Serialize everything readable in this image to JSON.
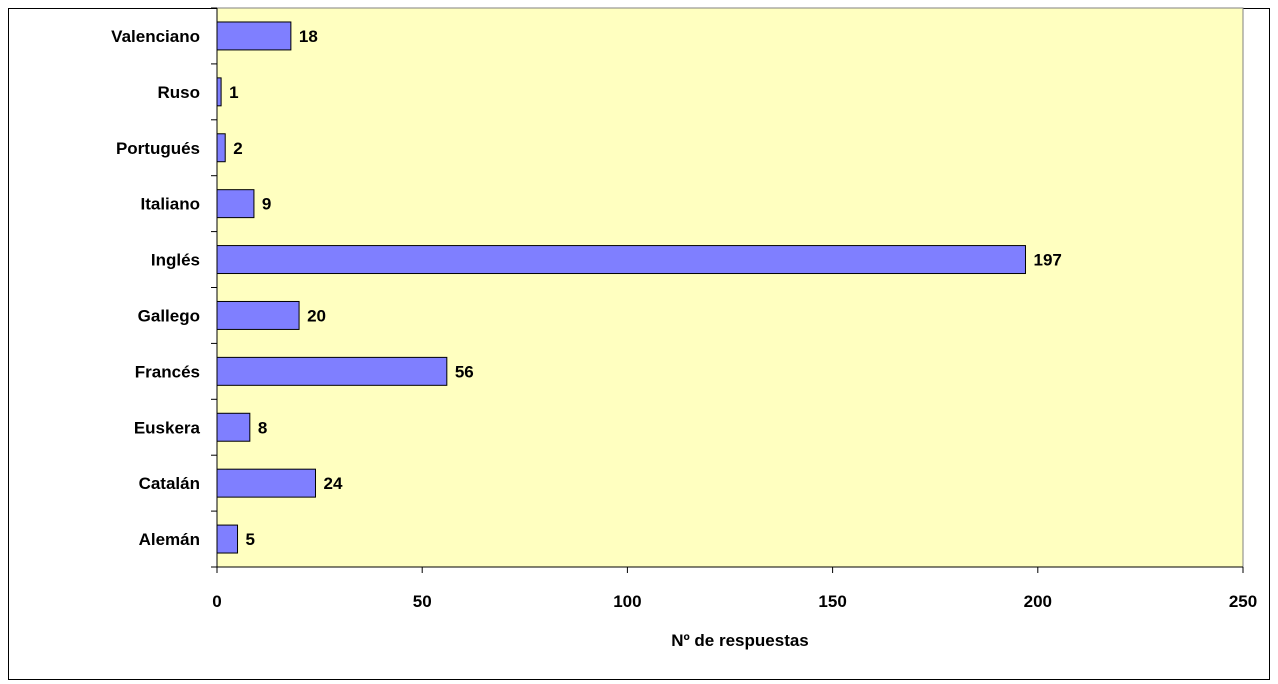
{
  "chart_data": {
    "type": "bar",
    "orientation": "horizontal",
    "title": "",
    "xlabel": "Nº de respuestas",
    "ylabel": "",
    "categories": [
      "Alemán",
      "Catalán",
      "Euskera",
      "Francés",
      "Gallego",
      "Inglés",
      "Italiano",
      "Portugués",
      "Ruso",
      "Valenciano"
    ],
    "values": [
      5,
      24,
      8,
      56,
      20,
      197,
      9,
      2,
      1,
      18
    ],
    "xlim": [
      0,
      250
    ],
    "x_ticks": [
      "0",
      "50",
      "100",
      "150",
      "200",
      "250"
    ],
    "grid": false,
    "legend": "none",
    "colors": {
      "plot_background": "#FFFFC0",
      "bar_fill": "#7F7FFF",
      "bar_stroke": "#000000",
      "axis": "#000000"
    }
  }
}
